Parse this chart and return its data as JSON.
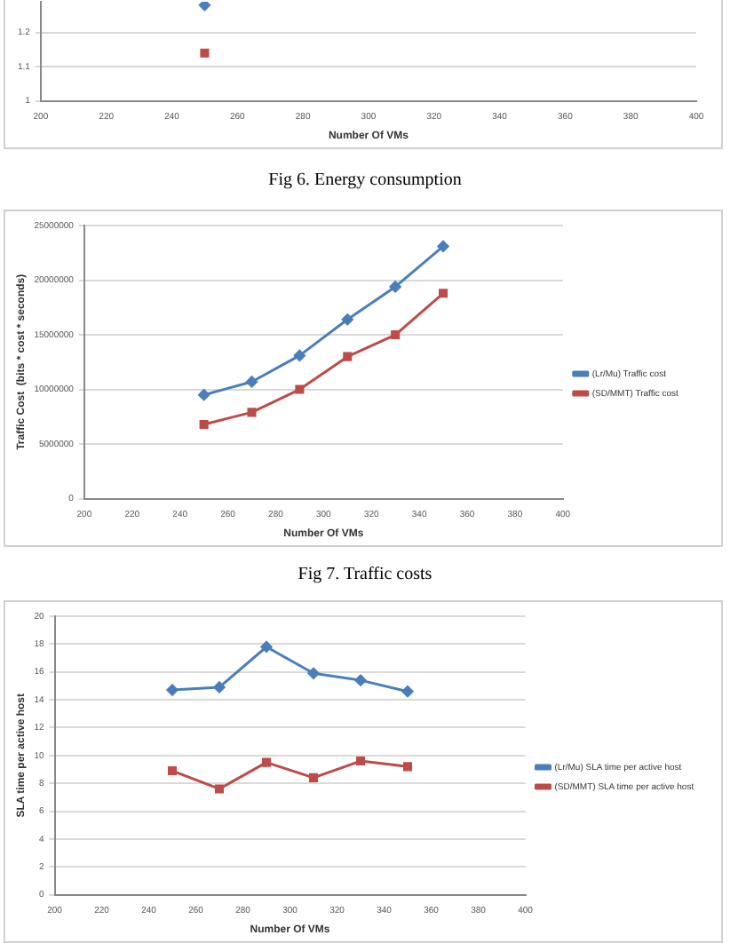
{
  "chart_data": [
    {
      "type": "line",
      "xlabel": "Number Of VMs",
      "xlim": [
        200,
        400
      ],
      "xticks": [
        200,
        220,
        240,
        260,
        280,
        300,
        320,
        340,
        360,
        380,
        400
      ],
      "ylim": [
        1,
        1.29
      ],
      "yticks": [
        1,
        1.1,
        1.2
      ],
      "grid": "y",
      "legend": false,
      "annotations": [
        "Fig 6. Energy consumption"
      ],
      "series": [
        {
          "color": "#4a7ebb",
          "marker": "diamond",
          "x": [
            250
          ],
          "values": [
            1.28
          ]
        },
        {
          "color": "#be4b48",
          "marker": "square",
          "x": [
            250
          ],
          "values": [
            1.14
          ]
        }
      ]
    },
    {
      "type": "line",
      "xlabel": "Number Of VMs",
      "ylabel": "Traffic Cost  (bits * cost * seconds)",
      "xlim": [
        200,
        400
      ],
      "xticks": [
        200,
        220,
        240,
        260,
        280,
        300,
        320,
        340,
        360,
        380,
        400
      ],
      "ylim": [
        0,
        25000000
      ],
      "yticks": [
        0,
        5000000,
        10000000,
        15000000,
        20000000,
        25000000
      ],
      "grid": "y",
      "legend": "right",
      "annotations": [
        "Fig 7. Traffic costs"
      ],
      "series": [
        {
          "name": "(Lr/Mu) Traffic cost",
          "color": "#4a7ebb",
          "marker": "diamond",
          "x": [
            250,
            270,
            290,
            310,
            330,
            350
          ],
          "values": [
            9500000,
            10700000,
            13100000,
            16400000,
            19400000,
            23100000
          ]
        },
        {
          "name": "(SD/MMT) Traffic cost",
          "color": "#be4b48",
          "marker": "square",
          "x": [
            250,
            270,
            290,
            310,
            330,
            350
          ],
          "values": [
            6800000,
            7900000,
            10000000,
            13000000,
            15000000,
            18800000
          ]
        }
      ]
    },
    {
      "type": "line",
      "xlabel": "Number Of VMs",
      "ylabel": "SLA time per active host",
      "xlim": [
        200,
        400
      ],
      "xticks": [
        200,
        220,
        240,
        260,
        280,
        300,
        320,
        340,
        360,
        380,
        400
      ],
      "ylim": [
        0,
        20
      ],
      "yticks": [
        0,
        2,
        4,
        6,
        8,
        10,
        12,
        14,
        16,
        18,
        20
      ],
      "grid": "y",
      "legend": "right",
      "series": [
        {
          "name": "(Lr/Mu) SLA time per active host",
          "color": "#4a7ebb",
          "marker": "diamond",
          "x": [
            250,
            270,
            290,
            310,
            330,
            350
          ],
          "values": [
            14.7,
            14.9,
            17.8,
            15.9,
            15.4,
            14.6
          ]
        },
        {
          "name": "(SD/MMT) SLA time per active host",
          "color": "#be4b48",
          "marker": "square",
          "x": [
            250,
            270,
            290,
            310,
            330,
            350
          ],
          "values": [
            8.9,
            7.6,
            9.5,
            8.4,
            9.6,
            9.2
          ]
        }
      ]
    }
  ]
}
